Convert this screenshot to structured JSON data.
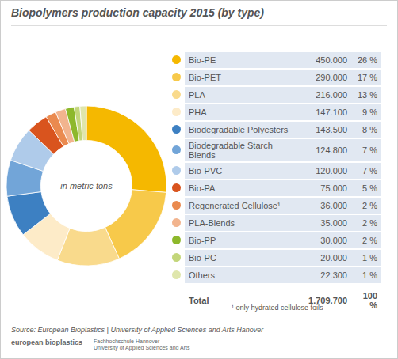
{
  "chart_data": {
    "type": "pie",
    "title": "Biopolymers production capacity 2015 (by type)",
    "annotations": [
      "in metric tons"
    ],
    "categories": [
      "Bio-PE",
      "Bio-PET",
      "PLA",
      "PHA",
      "Biodegradable Polyesters",
      "Biodegradable Starch Blends",
      "Bio-PVC",
      "Bio-PA",
      "Regenerated Cellulose¹",
      "PLA-Blends",
      "Bio-PP",
      "Bio-PC",
      "Others"
    ],
    "values": [
      450000,
      290000,
      216000,
      147100,
      143500,
      124800,
      120000,
      75000,
      36000,
      35000,
      30000,
      20000,
      22300
    ],
    "value_labels": [
      "450.000",
      "290.000",
      "216.000",
      "147.100",
      "143.500",
      "124.800",
      "120.000",
      "75.000",
      "36.000",
      "35.000",
      "30.000",
      "20.000",
      "22.300"
    ],
    "percentages": [
      26,
      17,
      13,
      9,
      8,
      7,
      7,
      5,
      2,
      2,
      2,
      1,
      1
    ],
    "percentage_labels": [
      "26 %",
      "17 %",
      "13 %",
      "9 %",
      "8 %",
      "7 %",
      "7 %",
      "5 %",
      "2 %",
      "2 %",
      "2 %",
      "1 %",
      "1 %"
    ],
    "colors": [
      "#f5b800",
      "#f7c94a",
      "#f9da8c",
      "#fdebc8",
      "#3d80c2",
      "#72a5d8",
      "#afcbea",
      "#d9541e",
      "#ea8a4f",
      "#f2b48e",
      "#8db82b",
      "#c3d67a",
      "#dfe6ac"
    ],
    "total": {
      "label": "Total",
      "value": 1709700,
      "value_label": "1.709.700",
      "percentage": 100,
      "percentage_label": "100 %"
    },
    "footnote": "¹ only hydrated cellulose foils",
    "source": "Source: European Bioplastics | University of Applied Sciences and Arts Hanover",
    "logos": [
      "european bioplastics",
      "Fachhochschule Hannover",
      "University of Applied Sciences and Arts"
    ],
    "legend": "right",
    "data_labels": false
  }
}
